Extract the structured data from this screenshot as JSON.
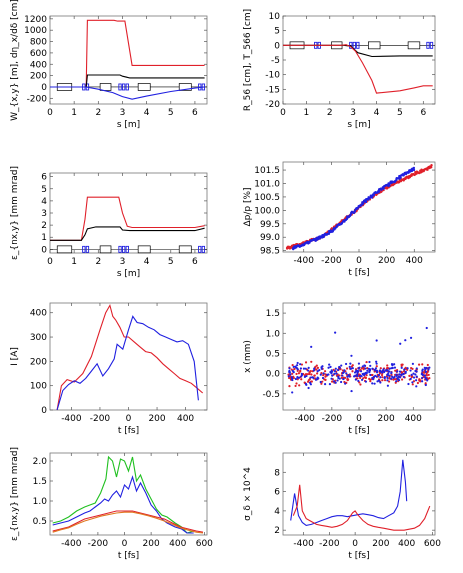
{
  "chart_data": [
    {
      "type": "line",
      "xlabel": "s [m]",
      "ylabel": "W_{x,y} [m], dη_x/dδ [cm]",
      "xlim": [
        0,
        6.5
      ],
      "ylim": [
        -300,
        1250
      ],
      "xticks": [
        0,
        1,
        2,
        3,
        4,
        5,
        6
      ],
      "yticks": [
        -200,
        0,
        200,
        400,
        600,
        800,
        1000,
        1200
      ],
      "series": [
        {
          "color": "#e0202a",
          "x": [
            0,
            1.3,
            1.5,
            1.55,
            2.65,
            2.8,
            3.1,
            3.4,
            6.4
          ],
          "y": [
            0,
            0,
            0,
            1175,
            1175,
            1160,
            1160,
            380,
            380
          ]
        },
        {
          "color": "#000000",
          "x": [
            0,
            1.3,
            1.5,
            1.55,
            2.9,
            3.0,
            3.3,
            6.4
          ],
          "y": [
            0,
            0,
            0,
            210,
            210,
            190,
            160,
            160
          ]
        },
        {
          "color": "#2020e0",
          "x": [
            0,
            1.5,
            1.6,
            2.0,
            2.6,
            3.0,
            3.4,
            4.0,
            5.0,
            6.0,
            6.4
          ],
          "y": [
            0,
            0,
            -10,
            -40,
            -100,
            -170,
            -215,
            -160,
            -80,
            -20,
            0
          ]
        }
      ],
      "lattice": true
    },
    {
      "type": "line",
      "xlabel": "s [m]",
      "ylabel": "R_56 [cm], T_566 [cm]",
      "xlim": [
        0,
        6.5
      ],
      "ylim": [
        -20,
        10
      ],
      "xticks": [
        0,
        1,
        2,
        3,
        4,
        5,
        6
      ],
      "yticks": [
        -20,
        -15,
        -10,
        -5,
        0,
        5,
        10
      ],
      "series": [
        {
          "color": "#000000",
          "x": [
            0,
            1.2,
            1.5,
            2.0,
            2.4,
            2.6,
            2.9,
            3.2,
            3.8,
            5.0,
            6.4
          ],
          "y": [
            0,
            0,
            0,
            0,
            0,
            0,
            -0.3,
            -2.5,
            -3.8,
            -3.6,
            -3.6
          ]
        },
        {
          "color": "#e0202a",
          "x": [
            0,
            2.5,
            2.7,
            2.9,
            3.1,
            3.4,
            3.8,
            4.0,
            5.0,
            5.6,
            6.0,
            6.4
          ],
          "y": [
            0,
            0,
            0.2,
            -0.5,
            -2,
            -6,
            -12,
            -16.3,
            -15.5,
            -14.5,
            -13.8,
            -13.8
          ]
        }
      ],
      "lattice": true
    },
    {
      "type": "line",
      "xlabel": "s [m]",
      "ylabel": "ε_{nx,y} [mm mrad]",
      "xlim": [
        0,
        6.5
      ],
      "ylim": [
        -0.3,
        6.3
      ],
      "xticks": [
        0,
        1,
        2,
        3,
        4,
        5,
        6
      ],
      "yticks": [
        0,
        1,
        2,
        3,
        4,
        5,
        6
      ],
      "series": [
        {
          "color": "#e0202a",
          "x": [
            0,
            0.5,
            1.3,
            1.45,
            1.55,
            2.85,
            3.0,
            3.2,
            3.4,
            6.0,
            6.4
          ],
          "y": [
            0.75,
            0.75,
            0.75,
            2.5,
            4.3,
            4.3,
            3.0,
            1.9,
            1.8,
            1.8,
            1.95
          ]
        },
        {
          "color": "#000000",
          "x": [
            0,
            0.5,
            1.3,
            1.45,
            1.55,
            1.9,
            2.9,
            3.0,
            3.3,
            6.0,
            6.4
          ],
          "y": [
            0.75,
            0.75,
            0.75,
            1.2,
            1.7,
            1.85,
            1.85,
            1.6,
            1.55,
            1.55,
            1.75
          ]
        }
      ],
      "lattice": true
    },
    {
      "type": "scatter",
      "xlabel": "t [fs]",
      "ylabel": "Δp/p [%]",
      "xlim": [
        -550,
        550
      ],
      "ylim": [
        98.45,
        101.8
      ],
      "xticks": [
        -400,
        -200,
        0,
        200,
        400
      ],
      "yticks": [
        98.5,
        99.0,
        99.5,
        100.0,
        100.5,
        101.0,
        101.5
      ],
      "series": [
        {
          "color": "#e0202a",
          "x": [
            -520,
            -480,
            -420,
            -360,
            -300,
            -240,
            -180,
            -120,
            -60,
            0,
            60,
            120,
            180,
            240,
            300,
            360,
            420,
            480,
            530
          ],
          "y": [
            98.6,
            98.65,
            98.75,
            98.85,
            98.95,
            99.1,
            99.35,
            99.6,
            99.85,
            100.1,
            100.35,
            100.6,
            100.8,
            100.95,
            101.1,
            101.25,
            101.4,
            101.52,
            101.65
          ]
        },
        {
          "color": "#2020e0",
          "x": [
            -480,
            -420,
            -360,
            -300,
            -240,
            -180,
            -120,
            -60,
            0,
            60,
            120,
            180,
            240,
            300,
            360,
            400
          ],
          "y": [
            98.6,
            98.7,
            98.82,
            98.95,
            99.1,
            99.3,
            99.55,
            99.85,
            100.15,
            100.4,
            100.65,
            100.85,
            101.05,
            101.25,
            101.45,
            101.55
          ]
        }
      ]
    },
    {
      "type": "line",
      "xlabel": "t [fs]",
      "ylabel": "I [A]",
      "xlim": [
        -550,
        550
      ],
      "ylim": [
        0,
        440
      ],
      "xticks": [
        -400,
        -200,
        0,
        200,
        400
      ],
      "yticks": [
        0,
        100,
        200,
        300,
        400
      ],
      "series": [
        {
          "color": "#e0202a",
          "x": [
            -500,
            -470,
            -430,
            -380,
            -320,
            -260,
            -200,
            -160,
            -130,
            -110,
            -90,
            -60,
            -30,
            0,
            40,
            80,
            120,
            160,
            200,
            240,
            280,
            320,
            360,
            400,
            440,
            480,
            520
          ],
          "y": [
            0,
            100,
            125,
            115,
            150,
            220,
            330,
            400,
            430,
            385,
            370,
            340,
            300,
            300,
            280,
            260,
            240,
            235,
            215,
            190,
            170,
            150,
            130,
            120,
            110,
            90,
            70
          ]
        },
        {
          "color": "#2020e0",
          "x": [
            -500,
            -460,
            -420,
            -380,
            -340,
            -300,
            -260,
            -220,
            -180,
            -140,
            -100,
            -80,
            -40,
            0,
            30,
            60,
            100,
            140,
            180,
            220,
            260,
            300,
            340,
            380,
            420,
            460,
            490
          ],
          "y": [
            0,
            80,
            105,
            120,
            110,
            130,
            160,
            190,
            140,
            170,
            210,
            270,
            250,
            330,
            385,
            360,
            355,
            340,
            330,
            310,
            300,
            290,
            280,
            285,
            270,
            200,
            40
          ]
        }
      ]
    },
    {
      "type": "scatter",
      "xlabel": "t [fs]",
      "ylabel": "x (mm)",
      "xlim": [
        -560,
        560
      ],
      "ylim": [
        -0.9,
        1.75
      ],
      "xticks": [
        -400,
        -200,
        0,
        200,
        400
      ],
      "yticks": [
        -0.5,
        0.0,
        0.5,
        1.0,
        1.5
      ],
      "series": [
        {
          "color": "#e0202a",
          "note": "dense band around 0"
        },
        {
          "color": "#2020e0",
          "note": "dense band around 0 with outliers"
        }
      ]
    },
    {
      "type": "line",
      "xlabel": "t [fs]",
      "ylabel": "ε_{nx,y} [mm mrad]",
      "xlim": [
        -560,
        620
      ],
      "ylim": [
        0.15,
        2.2
      ],
      "xticks": [
        -400,
        -200,
        0,
        200,
        400,
        600
      ],
      "yticks": [
        0.5,
        1.0,
        1.5,
        2.0
      ],
      "series": [
        {
          "color": "#20c020",
          "x": [
            -540,
            -480,
            -420,
            -360,
            -300,
            -260,
            -220,
            -180,
            -140,
            -120,
            -90,
            -60,
            -30,
            0,
            30,
            60,
            90,
            120,
            160,
            200,
            240,
            280,
            320,
            380,
            430,
            470,
            520
          ],
          "y": [
            0.45,
            0.5,
            0.6,
            0.75,
            0.85,
            0.9,
            0.95,
            1.2,
            1.55,
            2.1,
            2.0,
            1.6,
            2.05,
            2.0,
            1.75,
            2.1,
            1.5,
            1.65,
            1.3,
            1.05,
            0.8,
            0.65,
            0.6,
            0.45,
            0.35,
            0.2,
            0.25
          ]
        },
        {
          "color": "#2020e0",
          "x": [
            -540,
            -480,
            -420,
            -360,
            -300,
            -260,
            -220,
            -180,
            -150,
            -120,
            -90,
            -60,
            -30,
            0,
            30,
            60,
            90,
            120,
            160,
            200,
            240,
            280,
            320,
            380,
            430,
            470,
            520
          ],
          "y": [
            0.4,
            0.45,
            0.5,
            0.6,
            0.7,
            0.75,
            0.85,
            0.95,
            1.05,
            1.0,
            1.15,
            1.25,
            1.1,
            1.4,
            1.3,
            1.6,
            1.25,
            1.45,
            1.2,
            0.9,
            0.75,
            0.55,
            0.45,
            0.35,
            0.3,
            0.2,
            0.2
          ]
        },
        {
          "color": "#e0202a",
          "x": [
            -540,
            -480,
            -420,
            -360,
            -300,
            -240,
            -180,
            -120,
            -60,
            0,
            60,
            120,
            180,
            240,
            300,
            360,
            420,
            480,
            540,
            590
          ],
          "y": [
            0.25,
            0.3,
            0.35,
            0.45,
            0.55,
            0.6,
            0.65,
            0.7,
            0.75,
            0.75,
            0.75,
            0.7,
            0.65,
            0.6,
            0.55,
            0.45,
            0.35,
            0.3,
            0.25,
            0.22
          ]
        },
        {
          "color": "#e07820",
          "x": [
            -540,
            -480,
            -420,
            -360,
            -300,
            -240,
            -180,
            -120,
            -60,
            0,
            60,
            120,
            180,
            240,
            300,
            360,
            420,
            480,
            540,
            590
          ],
          "y": [
            0.22,
            0.28,
            0.33,
            0.42,
            0.5,
            0.56,
            0.62,
            0.66,
            0.7,
            0.72,
            0.72,
            0.68,
            0.63,
            0.57,
            0.5,
            0.42,
            0.33,
            0.27,
            0.22,
            0.2
          ]
        }
      ]
    },
    {
      "type": "line",
      "xlabel": "t [fs]",
      "ylabel": "σ_δ × 10^4",
      "xlim": [
        -560,
        620
      ],
      "ylim": [
        1.5,
        10
      ],
      "xticks": [
        -400,
        -200,
        0,
        200,
        400,
        600
      ],
      "yticks": [
        2,
        4,
        6,
        8
      ],
      "series": [
        {
          "color": "#2020e0",
          "x": [
            -500,
            -470,
            -440,
            -410,
            -380,
            -340,
            -300,
            -260,
            -220,
            -180,
            -140,
            -100,
            -60,
            -20,
            20,
            60,
            100,
            140,
            180,
            220,
            260,
            300,
            330,
            350,
            370,
            390,
            400
          ],
          "y": [
            3.0,
            5.8,
            3.5,
            2.8,
            2.5,
            2.6,
            2.8,
            3.0,
            3.2,
            3.4,
            3.5,
            3.5,
            3.4,
            3.5,
            3.6,
            3.7,
            3.6,
            3.5,
            3.3,
            3.2,
            3.5,
            3.8,
            4.5,
            6.0,
            9.3,
            7.0,
            5.0
          ]
        },
        {
          "color": "#e0202a",
          "x": [
            -480,
            -450,
            -430,
            -410,
            -380,
            -340,
            -300,
            -260,
            -220,
            -180,
            -140,
            -100,
            -60,
            -20,
            0,
            20,
            60,
            100,
            140,
            180,
            220,
            260,
            300,
            340,
            380,
            420,
            460,
            500,
            540,
            580
          ],
          "y": [
            3.5,
            4.5,
            6.7,
            4.0,
            3.2,
            2.9,
            2.6,
            2.5,
            2.4,
            2.3,
            2.4,
            2.6,
            3.0,
            3.8,
            4.0,
            3.6,
            3.0,
            2.6,
            2.4,
            2.3,
            2.2,
            2.1,
            2.0,
            2.0,
            2.0,
            2.1,
            2.2,
            2.5,
            3.2,
            4.5
          ]
        }
      ]
    }
  ]
}
